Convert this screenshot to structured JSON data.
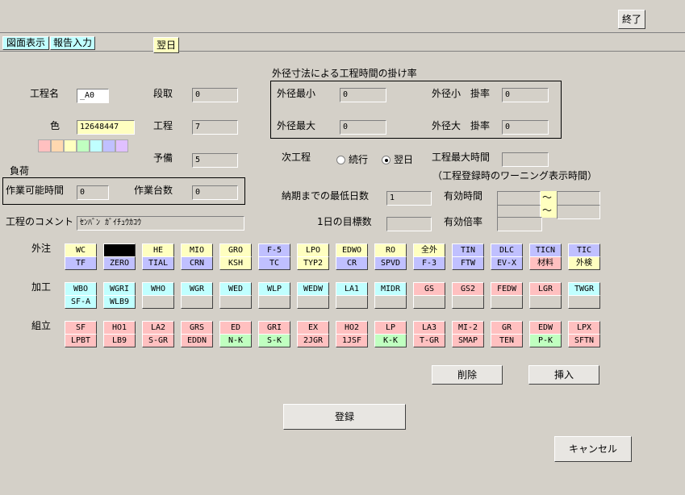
{
  "toolbar": {
    "close": "終了"
  },
  "tabs": [
    "図面表示",
    "報告入力",
    "翌日"
  ],
  "form": {
    "process_name": {
      "label": "工程名",
      "value": "_A0"
    },
    "color": {
      "label": "色",
      "value": "12648447"
    },
    "setup": {
      "label": "段取",
      "value": "0"
    },
    "process": {
      "label": "工程",
      "value": "7"
    },
    "spare": {
      "label": "予備",
      "value": "5"
    },
    "load": {
      "title": "負荷",
      "hours_label": "作業可能時間",
      "hours": "0",
      "units_label": "作業台数",
      "units": "0"
    },
    "comment": {
      "label": "工程のコメント",
      "value": "ｾﾝﾊﾞﾝ ｶﾞｲﾁｭｳｶｺｳ"
    },
    "rate": {
      "title": "外径寸法による工程時間の掛け率",
      "min_label": "外径最小",
      "min": "0",
      "max_label": "外径最大",
      "max": "0",
      "small_label": "外径小　掛率",
      "small": "0",
      "large_label": "外径大　掛率",
      "large": "0"
    },
    "next": {
      "label": "次工程",
      "options": [
        "続行",
        "翌日"
      ]
    },
    "max_time": {
      "label": "工程最大時間",
      "note": "（工程登録時のワーニング表示時間）"
    },
    "min_days": {
      "label": "納期までの最低日数",
      "value": "1"
    },
    "target": {
      "label": "1日の目標数"
    },
    "valid_time": {
      "label": "有効時間",
      "sep": "～"
    },
    "valid_rate": {
      "label": "有効倍率"
    }
  },
  "groups": [
    {
      "label": "外注",
      "buttons": [
        {
          "top": "WC",
          "bottom": "TF",
          "top_color": "#ffffc0",
          "bottom_color": "#c0c0ff"
        },
        {
          "bottom": "ZERO",
          "top_color": "#000000",
          "bottom_color": "#c0c0ff"
        },
        {
          "top": "HE",
          "bottom": "TIAL",
          "top_color": "#ffffc0",
          "bottom_color": "#c0c0ff"
        },
        {
          "top": "MIO",
          "bottom": "CRN",
          "top_color": "#ffffc0",
          "bottom_color": "#c0c0ff"
        },
        {
          "top": "GRO",
          "bottom": "KSH",
          "top_color": "#ffffc0",
          "bottom_color": "#ffffc0"
        },
        {
          "top": "F-5",
          "bottom": "TC",
          "top_color": "#c0c0ff",
          "bottom_color": "#c0c0ff"
        },
        {
          "top": "LPO",
          "bottom": "TYP2",
          "top_color": "#ffffc0",
          "bottom_color": "#ffffc0"
        },
        {
          "top": "EDWO",
          "bottom": "CR",
          "top_color": "#ffffc0",
          "bottom_color": "#c0c0ff"
        },
        {
          "top": "RO",
          "bottom": "SPVD",
          "top_color": "#ffffc0",
          "bottom_color": "#c0c0ff"
        },
        {
          "top": "全外",
          "bottom": "F-3",
          "top_color": "#ffffc0",
          "bottom_color": "#c0c0ff"
        },
        {
          "top": "TIN",
          "bottom": "FTW",
          "top_color": "#c0c0ff",
          "bottom_color": "#c0c0ff"
        },
        {
          "top": "DLC",
          "bottom": "EV-X",
          "top_color": "#c0c0ff",
          "bottom_color": "#c0c0ff"
        },
        {
          "top": "TICN",
          "bottom": "材料",
          "top_color": "#c0c0ff",
          "bottom_color": "#ffc0c0"
        },
        {
          "top": "TIC",
          "bottom": "外検",
          "top_color": "#c0c0ff",
          "bottom_color": "#ffffc0"
        }
      ]
    },
    {
      "label": "加工",
      "buttons": [
        {
          "top": "WBO",
          "bottom": "SF-A",
          "top_color": "#c0ffff",
          "bottom_color": "#c0ffff"
        },
        {
          "top": "WGRI",
          "bottom": "WLB9",
          "top_color": "#c0ffff",
          "bottom_color": "#c0ffff"
        },
        {
          "top": "WHO",
          "top_color": "#c0ffff",
          "bottom_color": "#d4d0c8"
        },
        {
          "top": "WGR",
          "top_color": "#c0ffff",
          "bottom_color": "#d4d0c8"
        },
        {
          "top": "WED",
          "top_color": "#c0ffff",
          "bottom_color": "#d4d0c8"
        },
        {
          "top": "WLP",
          "top_color": "#c0ffff",
          "bottom_color": "#d4d0c8"
        },
        {
          "top": "WEDW",
          "top_color": "#c0ffff",
          "bottom_color": "#d4d0c8"
        },
        {
          "top": "LA1",
          "top_color": "#c0ffff",
          "bottom_color": "#d4d0c8"
        },
        {
          "top": "MIDR",
          "top_color": "#c0ffff",
          "bottom_color": "#d4d0c8"
        },
        {
          "top": "GS",
          "top_color": "#ffc0c0",
          "bottom_color": "#d4d0c8"
        },
        {
          "top": "GS2",
          "top_color": "#ffc0c0",
          "bottom_color": "#d4d0c8"
        },
        {
          "top": "FEDW",
          "top_color": "#ffc0c0",
          "bottom_color": "#d4d0c8"
        },
        {
          "top": "LGR",
          "top_color": "#ffc0c0",
          "bottom_color": "#d4d0c8"
        },
        {
          "top": "TWGR",
          "top_color": "#c0ffff",
          "bottom_color": "#d4d0c8"
        }
      ]
    },
    {
      "label": "組立",
      "buttons": [
        {
          "top": "SF",
          "bottom": "LPBT",
          "top_color": "#ffc0c0",
          "bottom_color": "#ffc0c0"
        },
        {
          "top": "HO1",
          "bottom": "LB9",
          "top_color": "#ffc0c0",
          "bottom_color": "#ffc0c0"
        },
        {
          "top": "LA2",
          "bottom": "S-GR",
          "top_color": "#ffc0c0",
          "bottom_color": "#ffc0c0"
        },
        {
          "top": "GRS",
          "bottom": "EDDN",
          "top_color": "#ffc0c0",
          "bottom_color": "#ffc0c0"
        },
        {
          "top": "ED",
          "bottom": "N-K",
          "top_color": "#ffc0c0",
          "bottom_color": "#c0ffc0"
        },
        {
          "top": "GRI",
          "bottom": "S-K",
          "top_color": "#ffc0c0",
          "bottom_color": "#c0ffc0"
        },
        {
          "top": "EX",
          "bottom": "2JGR",
          "top_color": "#ffc0c0",
          "bottom_color": "#ffc0c0"
        },
        {
          "top": "HO2",
          "bottom": "1JSF",
          "top_color": "#ffc0c0",
          "bottom_color": "#ffc0c0"
        },
        {
          "top": "LP",
          "bottom": "K-K",
          "top_color": "#ffc0c0",
          "bottom_color": "#c0ffc0"
        },
        {
          "top": "LA3",
          "bottom": "T-GR",
          "top_color": "#ffc0c0",
          "bottom_color": "#ffc0c0"
        },
        {
          "top": "MI-2",
          "bottom": "SMAP",
          "top_color": "#ffc0c0",
          "bottom_color": "#ffc0c0"
        },
        {
          "top": "GR",
          "bottom": "TEN",
          "top_color": "#ffc0c0",
          "bottom_color": "#ffc0c0"
        },
        {
          "top": "EDW",
          "bottom": "P-K",
          "top_color": "#ffc0c0",
          "bottom_color": "#c0ffc0"
        },
        {
          "top": "LPX",
          "bottom": "SFTN",
          "top_color": "#ffc0c0",
          "bottom_color": "#ffc0c0"
        }
      ]
    }
  ],
  "actions": {
    "delete": "削除",
    "insert": "挿入",
    "register": "登録",
    "cancel": "キャンセル"
  }
}
